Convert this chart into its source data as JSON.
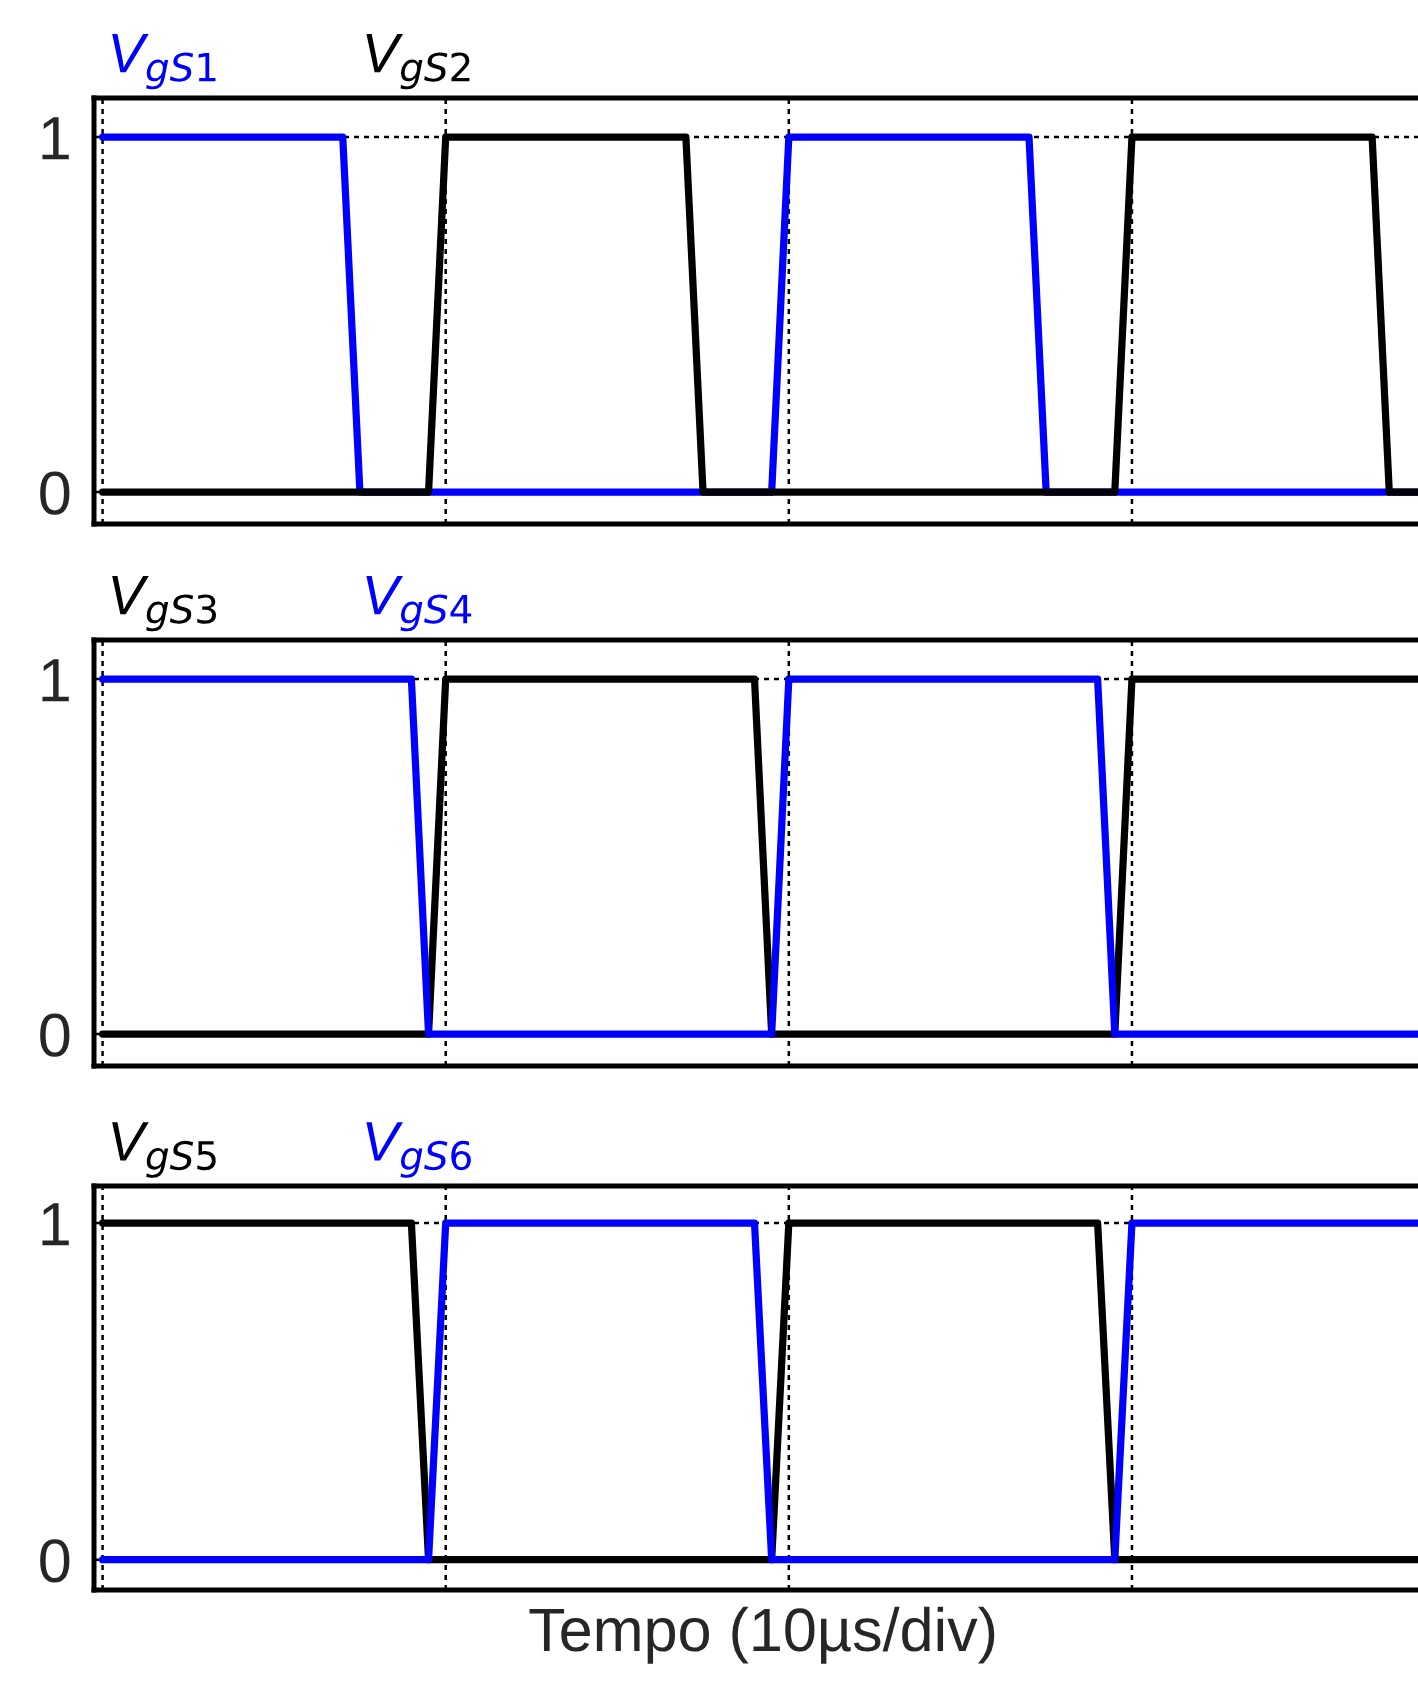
{
  "chart_data": [
    {
      "type": "line",
      "categories": [
        null,
        null,
        null,
        null,
        null,
        null,
        null,
        null,
        null,
        null,
        null,
        null,
        null,
        null,
        null,
        null,
        null,
        null,
        null,
        null,
        null,
        null,
        null,
        null,
        null,
        null,
        null,
        null,
        null,
        null,
        null,
        null,
        null,
        null,
        null,
        null,
        null,
        null,
        null,
        null,
        null,
        null,
        null,
        null,
        null,
        null,
        null,
        null,
        null,
        null,
        null,
        null,
        null,
        null,
        null,
        null,
        null,
        null,
        null,
        null,
        null,
        null,
        null,
        null,
        null,
        null,
        null,
        null,
        null,
        null,
        null,
        null,
        null,
        null,
        null,
        null,
        null,
        null
      ],
      "series": [
        {
          "name": "V$_{gS1}$",
          "color": "#0000ff",
          "values": [
            1,
            1,
            1,
            1,
            1,
            1,
            1,
            1,
            1,
            1,
            1,
            1,
            1,
            1,
            1,
            0,
            0,
            0,
            0,
            0,
            0,
            0,
            0,
            0,
            0,
            0,
            0,
            0,
            0,
            0,
            0,
            0,
            0,
            0,
            0,
            0,
            0,
            0,
            0,
            0,
            1,
            1,
            1,
            1,
            1,
            1,
            1,
            1,
            1,
            1,
            1,
            1,
            1,
            1,
            1,
            0,
            0,
            0,
            0,
            0,
            0,
            0,
            0,
            0,
            0,
            0,
            0,
            0,
            0,
            0,
            0,
            0,
            0,
            0,
            0,
            0,
            0,
            0
          ]
        },
        {
          "name": "V$_{gS2}$",
          "color": "#000000",
          "values": [
            0,
            0,
            0,
            0,
            0,
            0,
            0,
            0,
            0,
            0,
            0,
            0,
            0,
            0,
            0,
            0,
            0,
            0,
            0,
            0,
            1,
            1,
            1,
            1,
            1,
            1,
            1,
            1,
            1,
            1,
            1,
            1,
            1,
            1,
            1,
            0,
            0,
            0,
            0,
            0,
            0,
            0,
            0,
            0,
            0,
            0,
            0,
            0,
            0,
            0,
            0,
            0,
            0,
            0,
            0,
            0,
            0,
            0,
            0,
            0,
            1,
            1,
            1,
            1,
            1,
            1,
            1,
            1,
            1,
            1,
            1,
            1,
            1,
            1,
            1,
            0,
            0,
            0
          ]
        }
      ],
      "ylim": [
        -0.09,
        1.11
      ],
      "yticks": [
        0,
        1
      ],
      "grid": true,
      "tick_labels": "y",
      "legend": false
    },
    {
      "type": "line",
      "categories": [
        null,
        null,
        null,
        null,
        null,
        null,
        null,
        null,
        null,
        null,
        null,
        null,
        null,
        null,
        null,
        null,
        null,
        null,
        null,
        null,
        null,
        null,
        null,
        null,
        null,
        null,
        null,
        null,
        null,
        null,
        null,
        null,
        null,
        null,
        null,
        null,
        null,
        null,
        null,
        null,
        null,
        null,
        null,
        null,
        null,
        null,
        null,
        null,
        null,
        null,
        null,
        null,
        null,
        null,
        null,
        null,
        null,
        null,
        null,
        null,
        null,
        null,
        null,
        null,
        null,
        null,
        null,
        null,
        null,
        null,
        null,
        null,
        null,
        null,
        null,
        null,
        null,
        null
      ],
      "series": [
        {
          "name": "V$_{gS3}$",
          "color": "#000000",
          "values": [
            0,
            0,
            0,
            0,
            0,
            0,
            0,
            0,
            0,
            0,
            0,
            0,
            0,
            0,
            0,
            0,
            0,
            0,
            0,
            0,
            1,
            1,
            1,
            1,
            1,
            1,
            1,
            1,
            1,
            1,
            1,
            1,
            1,
            1,
            1,
            1,
            1,
            1,
            1,
            0,
            0,
            0,
            0,
            0,
            0,
            0,
            0,
            0,
            0,
            0,
            0,
            0,
            0,
            0,
            0,
            0,
            0,
            0,
            0,
            0,
            1,
            1,
            1,
            1,
            1,
            1,
            1,
            1,
            1,
            1,
            1,
            1,
            1,
            1,
            1,
            1,
            1,
            1
          ]
        },
        {
          "name": "V$_{gS4}$",
          "color": "#0000ff",
          "values": [
            1,
            1,
            1,
            1,
            1,
            1,
            1,
            1,
            1,
            1,
            1,
            1,
            1,
            1,
            1,
            1,
            1,
            1,
            1,
            0,
            0,
            0,
            0,
            0,
            0,
            0,
            0,
            0,
            0,
            0,
            0,
            0,
            0,
            0,
            0,
            0,
            0,
            0,
            0,
            0,
            1,
            1,
            1,
            1,
            1,
            1,
            1,
            1,
            1,
            1,
            1,
            1,
            1,
            1,
            1,
            1,
            1,
            1,
            1,
            0,
            0,
            0,
            0,
            0,
            0,
            0,
            0,
            0,
            0,
            0,
            0,
            0,
            0,
            0,
            0,
            0,
            0,
            0
          ]
        }
      ],
      "ylim": [
        -0.09,
        1.11
      ],
      "yticks": [
        0,
        1
      ],
      "grid": true,
      "tick_labels": "y",
      "legend": false
    },
    {
      "type": "line",
      "xlabel": "Tempo (10µs/div)",
      "categories": [
        null,
        null,
        null,
        null,
        null,
        null,
        null,
        null,
        null,
        null,
        null,
        null,
        null,
        null,
        null,
        null,
        null,
        null,
        null,
        null,
        null,
        null,
        null,
        null,
        null,
        null,
        null,
        null,
        null,
        null,
        null,
        null,
        null,
        null,
        null,
        null,
        null,
        null,
        null,
        null,
        null,
        null,
        null,
        null,
        null,
        null,
        null,
        null,
        null,
        null,
        null,
        null,
        null,
        null,
        null,
        null,
        null,
        null,
        null,
        null,
        null,
        null,
        null,
        null,
        null,
        null,
        null,
        null,
        null,
        null,
        null,
        null,
        null,
        null,
        null,
        null,
        null,
        null
      ],
      "series": [
        {
          "name": "V$_{gS5}$",
          "color": "#000000",
          "values": [
            1,
            1,
            1,
            1,
            1,
            1,
            1,
            1,
            1,
            1,
            1,
            1,
            1,
            1,
            1,
            1,
            1,
            1,
            1,
            0,
            0,
            0,
            0,
            0,
            0,
            0,
            0,
            0,
            0,
            0,
            0,
            0,
            0,
            0,
            0,
            0,
            0,
            0,
            0,
            0,
            1,
            1,
            1,
            1,
            1,
            1,
            1,
            1,
            1,
            1,
            1,
            1,
            1,
            1,
            1,
            1,
            1,
            1,
            1,
            0,
            0,
            0,
            0,
            0,
            0,
            0,
            0,
            0,
            0,
            0,
            0,
            0,
            0,
            0,
            0,
            0,
            0,
            0
          ]
        },
        {
          "name": "V$_{gS6}$",
          "color": "#0000ff",
          "values": [
            0,
            0,
            0,
            0,
            0,
            0,
            0,
            0,
            0,
            0,
            0,
            0,
            0,
            0,
            0,
            0,
            0,
            0,
            0,
            0,
            1,
            1,
            1,
            1,
            1,
            1,
            1,
            1,
            1,
            1,
            1,
            1,
            1,
            1,
            1,
            1,
            1,
            1,
            1,
            0,
            0,
            0,
            0,
            0,
            0,
            0,
            0,
            0,
            0,
            0,
            0,
            0,
            0,
            0,
            0,
            0,
            0,
            0,
            0,
            0,
            1,
            1,
            1,
            1,
            1,
            1,
            1,
            1,
            1,
            1,
            1,
            1,
            1,
            1,
            1,
            1,
            1,
            1
          ]
        }
      ],
      "ylim": [
        -0.09,
        1.11
      ],
      "yticks": [
        0,
        1
      ],
      "grid": true,
      "tick_labels": "y",
      "legend": false
    }
  ]
}
